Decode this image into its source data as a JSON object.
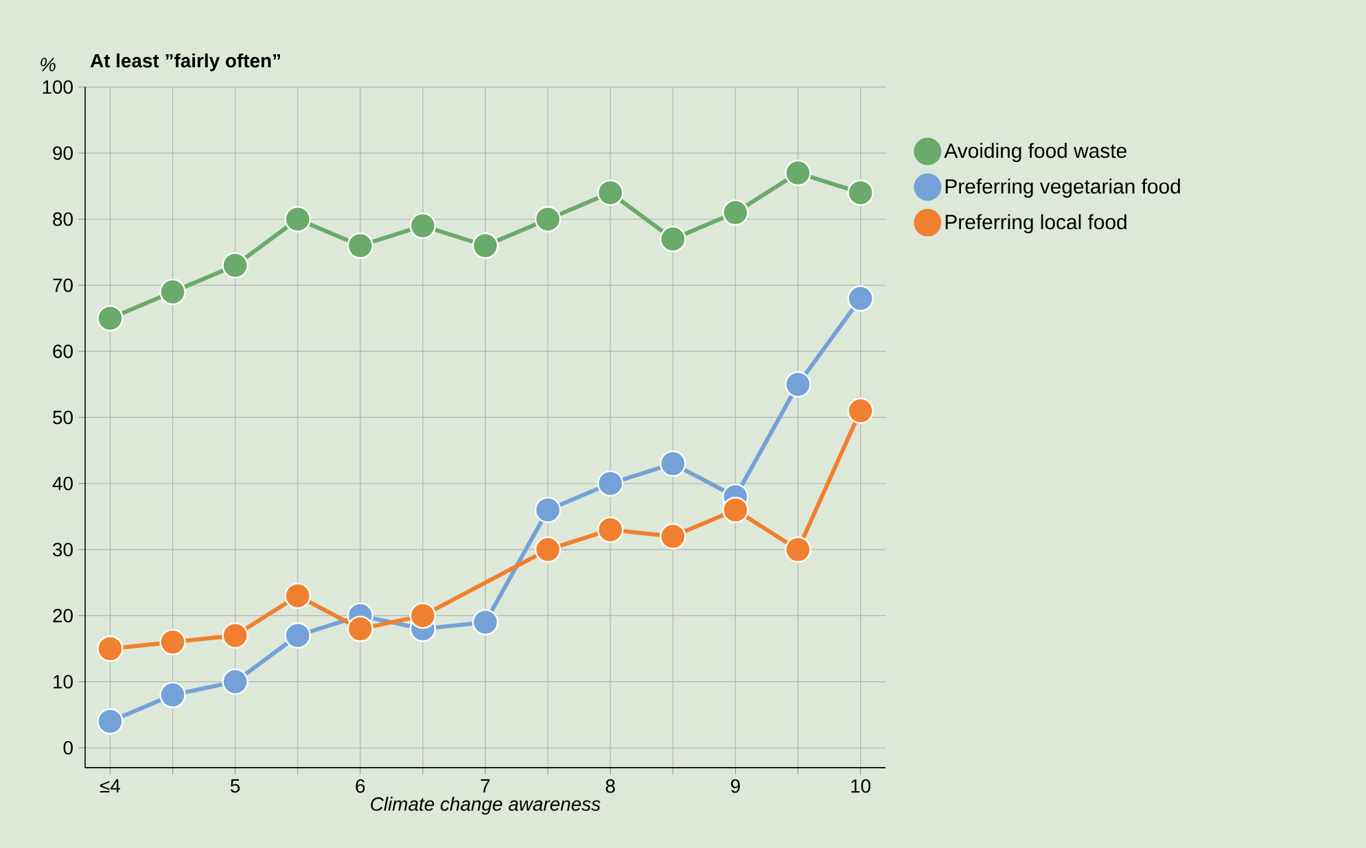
{
  "chart_data": {
    "type": "line",
    "title": "At least ”fairly often”",
    "ylabel": "%",
    "xlabel": "Climate change awareness",
    "x": [
      4,
      4.5,
      5,
      5.5,
      6,
      6.5,
      7,
      7.5,
      8,
      8.5,
      9,
      9.5,
      10
    ],
    "xlim": [
      3.8,
      10.2
    ],
    "xticks": [
      {
        "value": 4,
        "label": "≤4"
      },
      {
        "value": 4.5,
        "label": null
      },
      5,
      {
        "value": 5.5,
        "label": null
      },
      6,
      {
        "value": 6.5,
        "label": null
      },
      7,
      {
        "value": 7.5,
        "label": null
      },
      8,
      {
        "value": 8.5,
        "label": null
      },
      9,
      {
        "value": 9.5,
        "label": null
      },
      10
    ],
    "ylim": [
      -3,
      100
    ],
    "yticks": [
      0,
      10,
      20,
      30,
      40,
      50,
      60,
      70,
      80,
      90,
      100
    ],
    "grid": true,
    "legend": "right",
    "marker": "circle",
    "line_style": "solid",
    "series": [
      {
        "name": "Avoiding food waste",
        "color": "#6aaa6a",
        "values": [
          65,
          69,
          73,
          80,
          76,
          79,
          76,
          80,
          84,
          77,
          81,
          87,
          84
        ]
      },
      {
        "name": "Preferring vegetarian food",
        "color": "#74a2d8",
        "values": [
          4,
          8,
          10,
          17,
          20,
          18,
          19,
          36,
          40,
          43,
          38,
          55,
          68
        ]
      },
      {
        "name": "Preferring local food",
        "color": "#f08030",
        "x": [
          4,
          4.5,
          5,
          5.5,
          6,
          6.5,
          7.5,
          8,
          8.5,
          9,
          9.5,
          10
        ],
        "values": [
          15,
          16,
          17,
          23,
          18,
          20,
          30,
          33,
          32,
          36,
          30,
          51
        ]
      }
    ]
  }
}
